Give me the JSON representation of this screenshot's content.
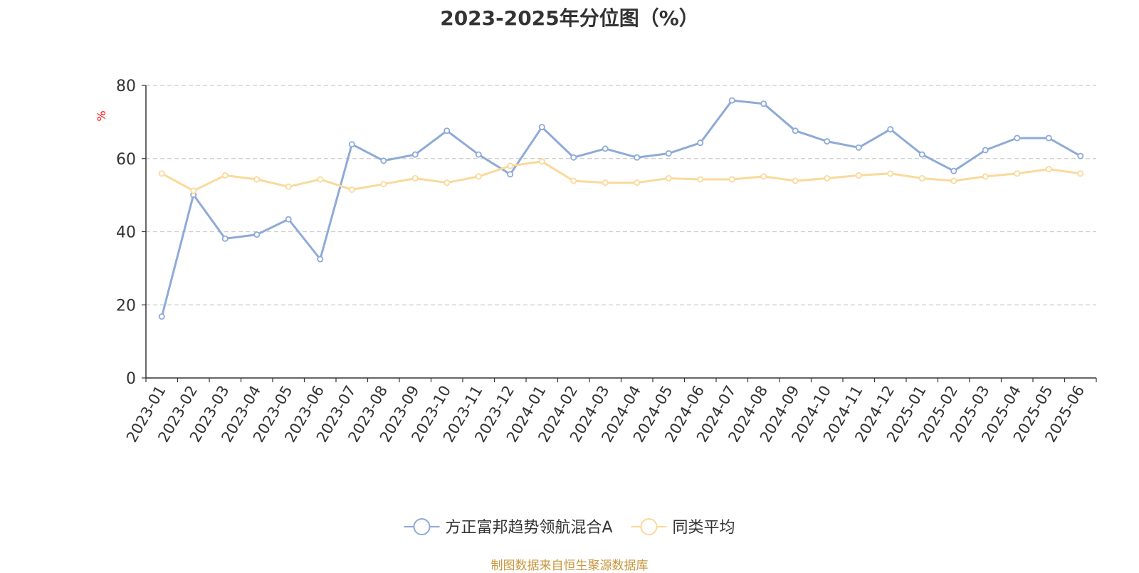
{
  "chart_data": {
    "type": "line",
    "title": "2023-2025年分位图（%）",
    "ylabel": "%",
    "xlabel": "",
    "ylim": [
      0,
      80
    ],
    "yticks": [
      0,
      20,
      40,
      60,
      80
    ],
    "grid": true,
    "legend_position": "bottom",
    "categories": [
      "2023-01",
      "2023-02",
      "2023-03",
      "2023-04",
      "2023-05",
      "2023-06",
      "2023-07",
      "2023-08",
      "2023-09",
      "2023-10",
      "2023-11",
      "2023-12",
      "2024-01",
      "2024-02",
      "2024-03",
      "2024-04",
      "2024-05",
      "2024-06",
      "2024-07",
      "2024-08",
      "2024-09",
      "2024-10",
      "2024-11",
      "2024-12",
      "2025-01",
      "2025-02",
      "2025-03",
      "2025-04",
      "2025-05",
      "2025-06"
    ],
    "series": [
      {
        "name": "方正富邦趋势领航混合A",
        "color": "#8eaad8",
        "values": [
          16.8,
          50.1,
          38.1,
          39.2,
          43.4,
          32.5,
          63.9,
          59.4,
          61.1,
          67.6,
          61.1,
          55.7,
          68.6,
          60.3,
          62.7,
          60.3,
          61.4,
          64.3,
          75.9,
          75.0,
          67.6,
          64.7,
          63.0,
          68.0,
          61.1,
          56.6,
          62.3,
          65.6,
          65.6,
          60.7
        ]
      },
      {
        "name": "同类平均",
        "color": "#fad99a",
        "values": [
          55.9,
          51.2,
          55.4,
          54.3,
          52.3,
          54.3,
          51.5,
          53.0,
          54.6,
          53.4,
          55.1,
          58.0,
          59.2,
          53.9,
          53.4,
          53.4,
          54.6,
          54.3,
          54.3,
          55.1,
          53.9,
          54.6,
          55.4,
          55.9,
          54.6,
          53.9,
          55.1,
          55.9,
          57.1,
          55.9
        ]
      }
    ]
  },
  "source_note": "制图数据来自恒生聚源数据库"
}
